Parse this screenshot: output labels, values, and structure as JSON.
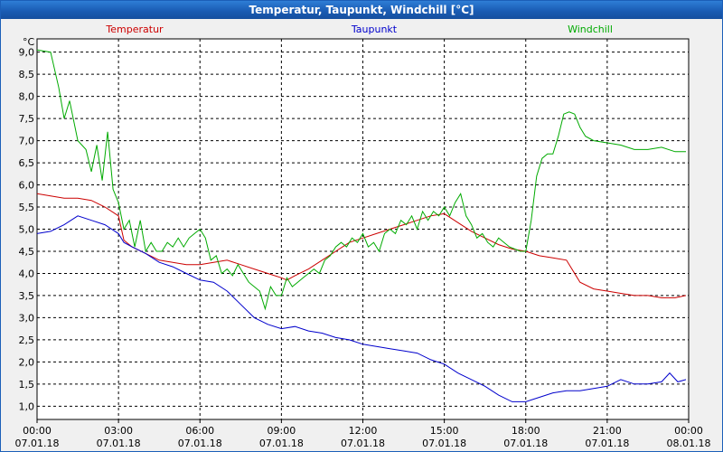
{
  "window": {
    "title": "Temperatur, Taupunkt, Windchill [°C]"
  },
  "chart_data": {
    "type": "line",
    "title": "Temperatur, Taupunkt, Windchill [°C]",
    "ylabel": "°C",
    "xlabel": "",
    "ylim": [
      0.7,
      9.3
    ],
    "xlim": [
      0,
      24
    ],
    "grid": true,
    "legend_placement": "top",
    "y_ticks": [
      "9,0",
      "8,5",
      "8,0",
      "7,5",
      "7,0",
      "6,5",
      "6,0",
      "5,5",
      "5,0",
      "4,5",
      "4,0",
      "3,5",
      "3,0",
      "2,5",
      "2,0",
      "1,5",
      "1,0"
    ],
    "x_ticks": [
      {
        "time": "00:00",
        "date": "07.01.18"
      },
      {
        "time": "03:00",
        "date": "07.01.18"
      },
      {
        "time": "06:00",
        "date": "07.01.18"
      },
      {
        "time": "09:00",
        "date": "07.01.18"
      },
      {
        "time": "12:00",
        "date": "07.01.18"
      },
      {
        "time": "15:00",
        "date": "07.01.18"
      },
      {
        "time": "18:00",
        "date": "07.01.18"
      },
      {
        "time": "21:00",
        "date": "07.01.18"
      },
      {
        "time": "00:00",
        "date": "08.01.18"
      }
    ],
    "series": [
      {
        "name": "Temperatur",
        "color": "#cc0000",
        "points": [
          [
            0,
            5.8
          ],
          [
            0.5,
            5.75
          ],
          [
            1,
            5.7
          ],
          [
            1.5,
            5.7
          ],
          [
            2,
            5.65
          ],
          [
            2.5,
            5.5
          ],
          [
            3,
            5.3
          ],
          [
            3.2,
            4.75
          ],
          [
            3.5,
            4.6
          ],
          [
            4,
            4.45
          ],
          [
            4.5,
            4.3
          ],
          [
            5,
            4.25
          ],
          [
            5.5,
            4.2
          ],
          [
            6,
            4.2
          ],
          [
            6.5,
            4.25
          ],
          [
            7,
            4.3
          ],
          [
            7.5,
            4.2
          ],
          [
            8,
            4.1
          ],
          [
            8.5,
            4.0
          ],
          [
            9,
            3.9
          ],
          [
            9.2,
            3.85
          ],
          [
            9.5,
            3.95
          ],
          [
            10,
            4.1
          ],
          [
            10.5,
            4.3
          ],
          [
            11,
            4.5
          ],
          [
            11.5,
            4.7
          ],
          [
            12,
            4.8
          ],
          [
            12.5,
            4.9
          ],
          [
            13,
            5.0
          ],
          [
            13.5,
            5.1
          ],
          [
            14,
            5.2
          ],
          [
            14.5,
            5.3
          ],
          [
            15,
            5.35
          ],
          [
            15.5,
            5.15
          ],
          [
            16,
            4.95
          ],
          [
            16.5,
            4.8
          ],
          [
            17,
            4.65
          ],
          [
            17.5,
            4.55
          ],
          [
            18,
            4.5
          ],
          [
            18.5,
            4.4
          ],
          [
            19,
            4.35
          ],
          [
            19.5,
            4.3
          ],
          [
            20,
            3.8
          ],
          [
            20.5,
            3.65
          ],
          [
            21,
            3.6
          ],
          [
            21.5,
            3.55
          ],
          [
            22,
            3.5
          ],
          [
            22.5,
            3.5
          ],
          [
            23,
            3.45
          ],
          [
            23.5,
            3.45
          ],
          [
            23.9,
            3.5
          ]
        ]
      },
      {
        "name": "Taupunkt",
        "color": "#0000cc",
        "points": [
          [
            0,
            4.9
          ],
          [
            0.5,
            4.95
          ],
          [
            1,
            5.1
          ],
          [
            1.5,
            5.3
          ],
          [
            2,
            5.2
          ],
          [
            2.5,
            5.1
          ],
          [
            3,
            4.9
          ],
          [
            3.2,
            4.7
          ],
          [
            3.5,
            4.6
          ],
          [
            4,
            4.45
          ],
          [
            4.5,
            4.25
          ],
          [
            5,
            4.15
          ],
          [
            5.5,
            4.0
          ],
          [
            6,
            3.85
          ],
          [
            6.5,
            3.8
          ],
          [
            7,
            3.6
          ],
          [
            7.5,
            3.3
          ],
          [
            8,
            3.0
          ],
          [
            8.5,
            2.85
          ],
          [
            9,
            2.75
          ],
          [
            9.5,
            2.8
          ],
          [
            10,
            2.7
          ],
          [
            10.5,
            2.65
          ],
          [
            11,
            2.55
          ],
          [
            11.5,
            2.5
          ],
          [
            12,
            2.4
          ],
          [
            12.5,
            2.35
          ],
          [
            13,
            2.3
          ],
          [
            13.5,
            2.25
          ],
          [
            14,
            2.2
          ],
          [
            14.5,
            2.05
          ],
          [
            15,
            1.95
          ],
          [
            15.5,
            1.75
          ],
          [
            16,
            1.6
          ],
          [
            16.5,
            1.45
          ],
          [
            17,
            1.25
          ],
          [
            17.5,
            1.1
          ],
          [
            18,
            1.1
          ],
          [
            18.5,
            1.2
          ],
          [
            19,
            1.3
          ],
          [
            19.5,
            1.35
          ],
          [
            20,
            1.35
          ],
          [
            20.5,
            1.4
          ],
          [
            21,
            1.45
          ],
          [
            21.5,
            1.6
          ],
          [
            22,
            1.5
          ],
          [
            22.5,
            1.5
          ],
          [
            23,
            1.55
          ],
          [
            23.3,
            1.75
          ],
          [
            23.6,
            1.55
          ],
          [
            23.9,
            1.6
          ]
        ]
      },
      {
        "name": "Windchill",
        "color": "#00aa00",
        "points": [
          [
            0,
            9.05
          ],
          [
            0.5,
            9.0
          ],
          [
            0.8,
            8.2
          ],
          [
            1.0,
            7.5
          ],
          [
            1.2,
            7.9
          ],
          [
            1.5,
            7.0
          ],
          [
            1.8,
            6.8
          ],
          [
            2.0,
            6.3
          ],
          [
            2.2,
            6.9
          ],
          [
            2.4,
            6.1
          ],
          [
            2.6,
            7.2
          ],
          [
            2.8,
            5.9
          ],
          [
            3.0,
            5.6
          ],
          [
            3.2,
            5.0
          ],
          [
            3.4,
            5.2
          ],
          [
            3.6,
            4.6
          ],
          [
            3.8,
            5.2
          ],
          [
            4.0,
            4.5
          ],
          [
            4.2,
            4.7
          ],
          [
            4.4,
            4.5
          ],
          [
            4.6,
            4.5
          ],
          [
            4.8,
            4.7
          ],
          [
            5.0,
            4.6
          ],
          [
            5.2,
            4.8
          ],
          [
            5.4,
            4.6
          ],
          [
            5.6,
            4.8
          ],
          [
            5.8,
            4.9
          ],
          [
            6.0,
            5.0
          ],
          [
            6.2,
            4.8
          ],
          [
            6.4,
            4.3
          ],
          [
            6.6,
            4.4
          ],
          [
            6.8,
            4.0
          ],
          [
            7.0,
            4.1
          ],
          [
            7.2,
            3.95
          ],
          [
            7.4,
            4.2
          ],
          [
            7.6,
            4.0
          ],
          [
            7.8,
            3.8
          ],
          [
            8.0,
            3.7
          ],
          [
            8.2,
            3.6
          ],
          [
            8.4,
            3.2
          ],
          [
            8.6,
            3.7
          ],
          [
            8.8,
            3.5
          ],
          [
            9.0,
            3.5
          ],
          [
            9.2,
            3.9
          ],
          [
            9.4,
            3.7
          ],
          [
            9.6,
            3.8
          ],
          [
            9.8,
            3.9
          ],
          [
            10.0,
            4.0
          ],
          [
            10.2,
            4.1
          ],
          [
            10.4,
            4.0
          ],
          [
            10.6,
            4.3
          ],
          [
            10.8,
            4.4
          ],
          [
            11.0,
            4.6
          ],
          [
            11.2,
            4.7
          ],
          [
            11.4,
            4.6
          ],
          [
            11.6,
            4.8
          ],
          [
            11.8,
            4.7
          ],
          [
            12.0,
            4.9
          ],
          [
            12.2,
            4.6
          ],
          [
            12.4,
            4.7
          ],
          [
            12.6,
            4.5
          ],
          [
            12.8,
            4.9
          ],
          [
            13.0,
            5.0
          ],
          [
            13.2,
            4.9
          ],
          [
            13.4,
            5.2
          ],
          [
            13.6,
            5.1
          ],
          [
            13.8,
            5.3
          ],
          [
            14.0,
            5.0
          ],
          [
            14.2,
            5.4
          ],
          [
            14.4,
            5.2
          ],
          [
            14.6,
            5.4
          ],
          [
            14.8,
            5.3
          ],
          [
            15.0,
            5.5
          ],
          [
            15.2,
            5.3
          ],
          [
            15.4,
            5.6
          ],
          [
            15.6,
            5.8
          ],
          [
            15.8,
            5.3
          ],
          [
            16.0,
            5.1
          ],
          [
            16.2,
            4.8
          ],
          [
            16.4,
            4.9
          ],
          [
            16.6,
            4.7
          ],
          [
            16.8,
            4.6
          ],
          [
            17.0,
            4.8
          ],
          [
            17.2,
            4.7
          ],
          [
            17.4,
            4.6
          ],
          [
            17.6,
            4.55
          ],
          [
            17.8,
            4.5
          ],
          [
            18.0,
            4.5
          ],
          [
            18.2,
            5.2
          ],
          [
            18.4,
            6.2
          ],
          [
            18.6,
            6.6
          ],
          [
            18.8,
            6.7
          ],
          [
            19.0,
            6.7
          ],
          [
            19.2,
            7.1
          ],
          [
            19.4,
            7.6
          ],
          [
            19.6,
            7.65
          ],
          [
            19.8,
            7.6
          ],
          [
            20.0,
            7.3
          ],
          [
            20.2,
            7.1
          ],
          [
            20.5,
            7.0
          ],
          [
            21.0,
            6.95
          ],
          [
            21.5,
            6.9
          ],
          [
            22.0,
            6.8
          ],
          [
            22.5,
            6.8
          ],
          [
            23.0,
            6.85
          ],
          [
            23.5,
            6.75
          ],
          [
            23.9,
            6.75
          ]
        ]
      }
    ]
  }
}
